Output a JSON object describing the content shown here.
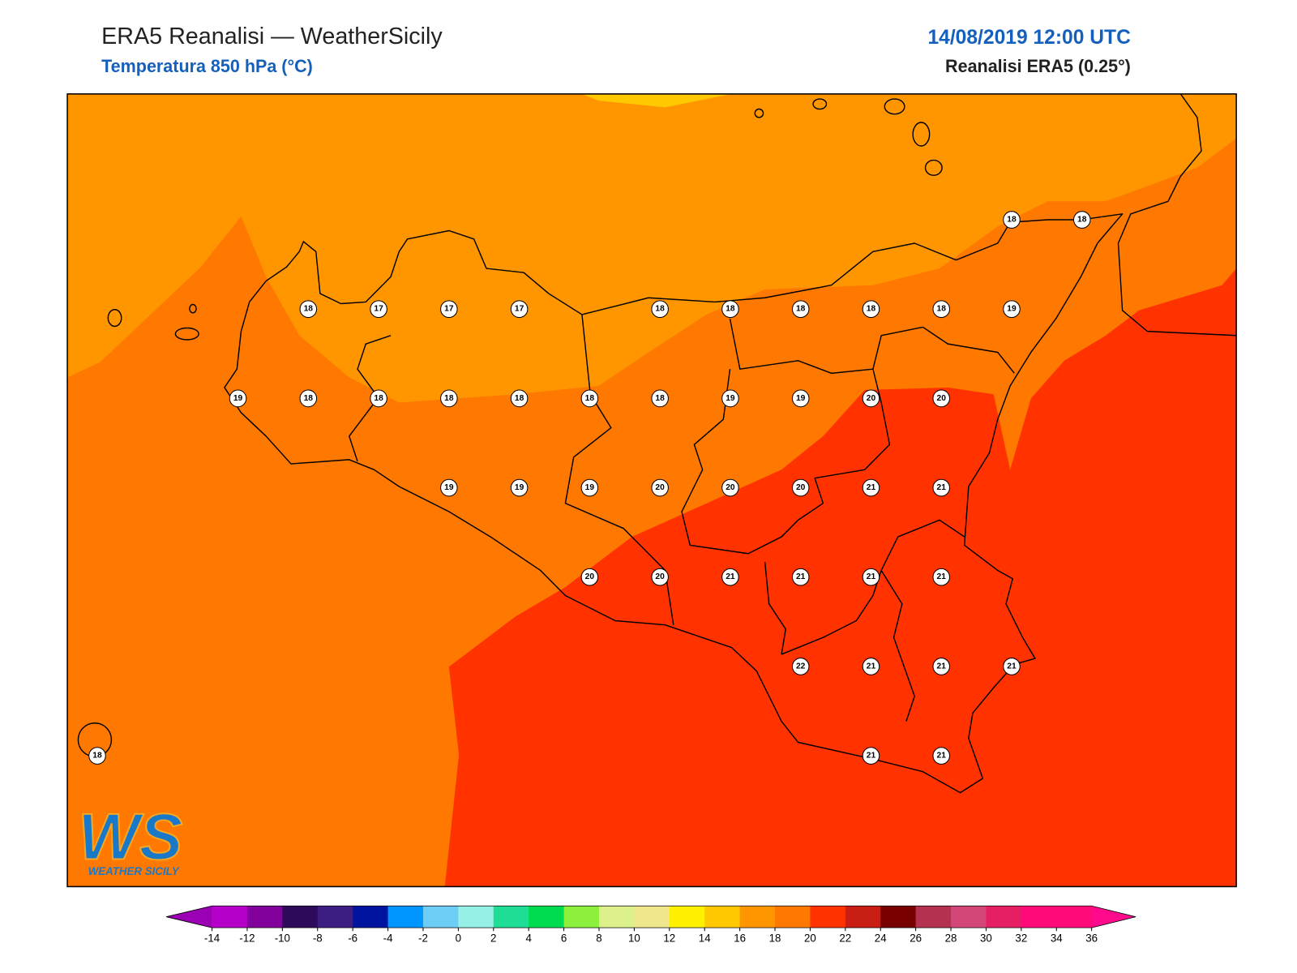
{
  "header": {
    "title": "ERA5 Reanalisi — WeatherSicily",
    "subtitle": "Temperatura 850 hPa (°C)",
    "datetime": "14/08/2019 12:00 UTC",
    "source": "Reanalisi ERA5 (0.25°)"
  },
  "stations": [
    18,
    18,
    18,
    17,
    17,
    17,
    18,
    18,
    18,
    18,
    18,
    19,
    19,
    18,
    18,
    18,
    18,
    18,
    18,
    19,
    19,
    20,
    20,
    19,
    19,
    19,
    20,
    20,
    20,
    21,
    21,
    20,
    20,
    21,
    21,
    21,
    21,
    22,
    21,
    21,
    21,
    18,
    21,
    21
  ],
  "colorbar": {
    "ticks": [
      -14,
      -12,
      -10,
      -8,
      -6,
      -4,
      -2,
      0,
      2,
      4,
      6,
      8,
      10,
      12,
      14,
      16,
      18,
      20,
      22,
      24,
      26,
      28,
      30,
      32,
      34,
      36
    ],
    "under": "#9c00b4",
    "over": "#ff0a8c",
    "colors": [
      "#b400c8",
      "#82009b",
      "#2d0a5a",
      "#3c1e82",
      "#0014a0",
      "#0096ff",
      "#6ecdf5",
      "#96f0e6",
      "#1ede96",
      "#00dc50",
      "#8cf03c",
      "#dcf08c",
      "#f0e68c",
      "#fff000",
      "#ffc800",
      "#ff9600",
      "#ff7800",
      "#ff3200",
      "#c81e14",
      "#780000",
      "#b43250",
      "#d24678",
      "#e61e64",
      "#ff0a78",
      "#ff0a78"
    ]
  },
  "logo": {
    "mark": "WS",
    "name": "WEATHER SICILY"
  }
}
